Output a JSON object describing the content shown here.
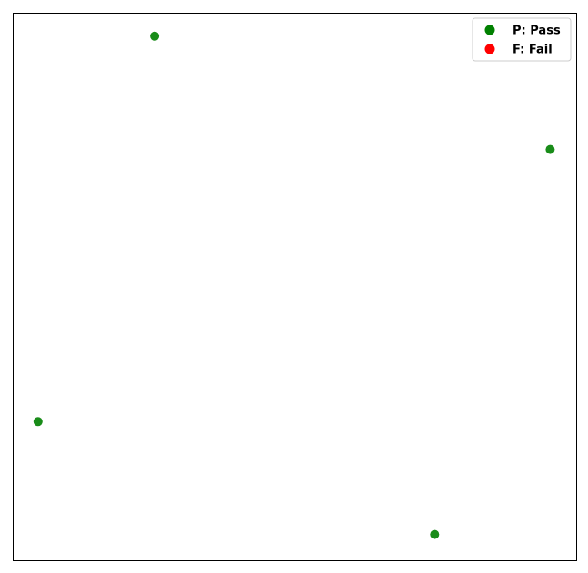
{
  "chart_data": {
    "type": "scatter",
    "title": "",
    "xlabel": "",
    "ylabel": "",
    "xlim": [
      0,
      100
    ],
    "ylim": [
      0,
      100
    ],
    "grid": false,
    "axes_ticks": false,
    "legend_position": "top-right",
    "series": [
      {
        "name": "P: Pass",
        "color": "#008000",
        "points": [
          {
            "x": 25.1,
            "y": 95.8
          },
          {
            "x": 95.3,
            "y": 75.1
          },
          {
            "x": 4.4,
            "y": 25.4
          },
          {
            "x": 74.8,
            "y": 4.8
          }
        ]
      },
      {
        "name": "F: Fail",
        "color": "#ff0000",
        "points": []
      }
    ]
  }
}
